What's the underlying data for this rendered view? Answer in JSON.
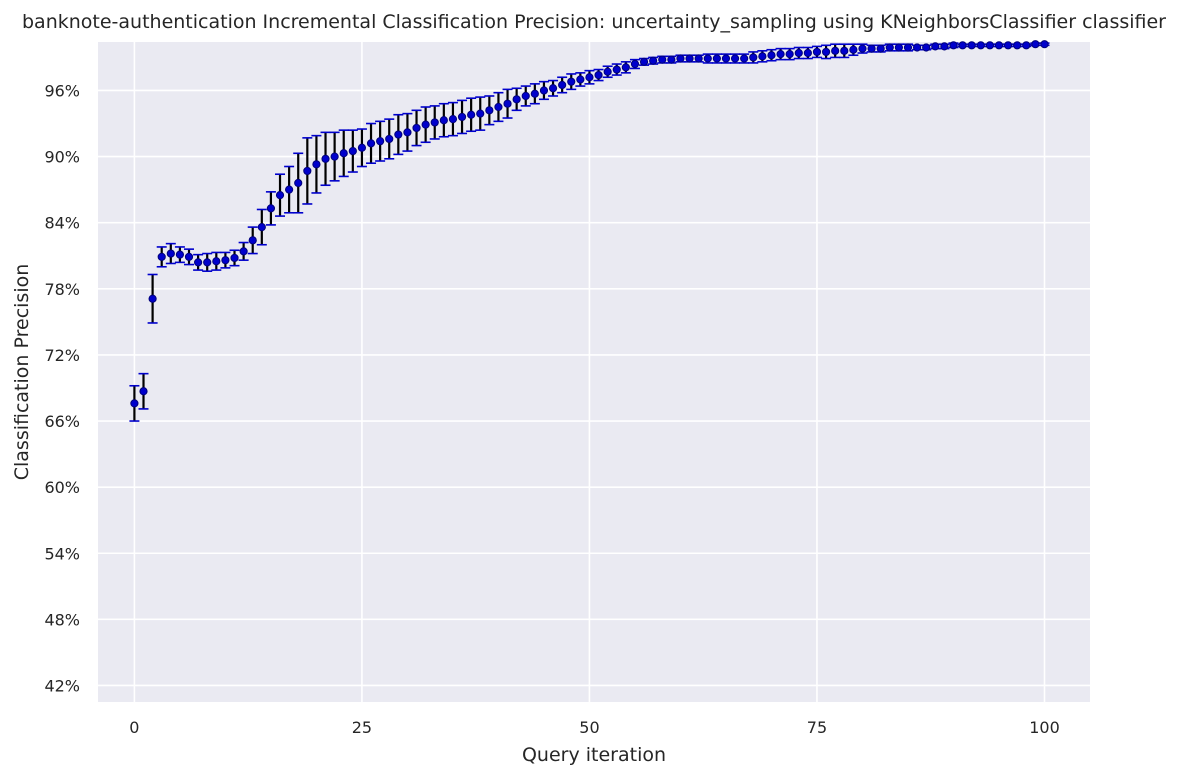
{
  "chart_data": {
    "type": "scatter",
    "title": "banknote-authentication Incremental Classification Precision: uncertainty_sampling using KNeighborsClassifier classifier",
    "xlabel": "Query iteration",
    "ylabel": "Classification Precision",
    "xlim": [
      -4,
      105
    ],
    "ylim": [
      40.5,
      100.4
    ],
    "x_ticks": [
      0,
      25,
      50,
      75,
      100
    ],
    "x_tick_labels": [
      "0",
      "25",
      "50",
      "75",
      "100"
    ],
    "y_ticks": [
      42,
      48,
      54,
      60,
      66,
      72,
      78,
      84,
      90,
      96
    ],
    "y_tick_labels": [
      "42%",
      "48%",
      "54%",
      "60%",
      "66%",
      "72%",
      "78%",
      "84%",
      "90%",
      "96%"
    ],
    "grid": true,
    "error_bars": true,
    "colors": {
      "background": "#eaeaf2",
      "grid": "#ffffff",
      "marker": "#0000cc",
      "marker_edge": "#00007a",
      "errorbar": "#000000",
      "cap": "#0000cc"
    },
    "series": [
      {
        "x": [
          0,
          1,
          2,
          3,
          4,
          5,
          6,
          7,
          8,
          9,
          10,
          11,
          12,
          13,
          14,
          15,
          16,
          17,
          18,
          19,
          20,
          21,
          22,
          23,
          24,
          25,
          26,
          27,
          28,
          29,
          30,
          31,
          32,
          33,
          34,
          35,
          36,
          37,
          38,
          39,
          40,
          41,
          42,
          43,
          44,
          45,
          46,
          47,
          48,
          49,
          50,
          51,
          52,
          53,
          54,
          55,
          56,
          57,
          58,
          59,
          60,
          61,
          62,
          63,
          64,
          65,
          66,
          67,
          68,
          69,
          70,
          71,
          72,
          73,
          74,
          75,
          76,
          77,
          78,
          79,
          80,
          81,
          82,
          83,
          84,
          85,
          86,
          87,
          88,
          89,
          90,
          91,
          92,
          93,
          94,
          95,
          96,
          97,
          98,
          99,
          100
        ],
        "y": [
          67.6,
          68.7,
          77.1,
          80.9,
          81.2,
          81.1,
          80.9,
          80.4,
          80.4,
          80.5,
          80.6,
          80.8,
          81.4,
          82.4,
          83.6,
          85.3,
          86.5,
          87.0,
          87.6,
          88.7,
          89.3,
          89.8,
          90.0,
          90.3,
          90.5,
          90.8,
          91.2,
          91.4,
          91.6,
          92.0,
          92.2,
          92.6,
          92.9,
          93.1,
          93.3,
          93.4,
          93.6,
          93.8,
          93.9,
          94.2,
          94.5,
          94.8,
          95.2,
          95.5,
          95.7,
          96.0,
          96.2,
          96.5,
          96.8,
          97.0,
          97.2,
          97.4,
          97.7,
          97.9,
          98.1,
          98.4,
          98.6,
          98.7,
          98.8,
          98.8,
          98.9,
          98.9,
          98.9,
          98.9,
          98.9,
          98.9,
          98.9,
          98.9,
          99.0,
          99.1,
          99.2,
          99.3,
          99.3,
          99.4,
          99.4,
          99.5,
          99.5,
          99.6,
          99.6,
          99.7,
          99.8,
          99.8,
          99.8,
          99.9,
          99.9,
          99.9,
          99.9,
          99.9,
          100.0,
          100.0,
          100.1,
          100.1,
          100.1,
          100.1,
          100.1,
          100.1,
          100.1,
          100.1,
          100.1,
          100.2,
          100.2
        ],
        "err": [
          1.6,
          1.6,
          2.2,
          0.9,
          0.9,
          0.7,
          0.7,
          0.7,
          0.8,
          0.8,
          0.7,
          0.7,
          0.8,
          1.2,
          1.6,
          1.5,
          1.9,
          2.1,
          2.7,
          3.0,
          2.6,
          2.4,
          2.2,
          2.1,
          1.9,
          1.7,
          1.8,
          1.8,
          1.8,
          1.8,
          1.7,
          1.6,
          1.6,
          1.5,
          1.5,
          1.5,
          1.5,
          1.5,
          1.5,
          1.3,
          1.3,
          1.3,
          1.0,
          0.9,
          0.9,
          0.8,
          0.7,
          0.7,
          0.7,
          0.6,
          0.6,
          0.5,
          0.5,
          0.5,
          0.5,
          0.4,
          0.3,
          0.3,
          0.3,
          0.3,
          0.3,
          0.3,
          0.3,
          0.4,
          0.4,
          0.4,
          0.4,
          0.4,
          0.5,
          0.5,
          0.5,
          0.5,
          0.5,
          0.5,
          0.5,
          0.5,
          0.6,
          0.6,
          0.6,
          0.5,
          0.4,
          0.3,
          0.3,
          0.3,
          0.3,
          0.3,
          0.2,
          0.2,
          0.2,
          0.2,
          0.2,
          0.1,
          0.1,
          0.1,
          0.1,
          0.1,
          0.1,
          0.1,
          0.1,
          0.1,
          0.1
        ]
      }
    ]
  }
}
